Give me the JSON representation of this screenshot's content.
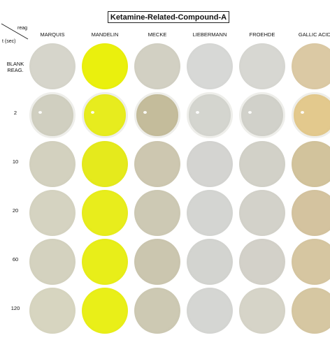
{
  "title": "Ketamine-Related-Compound-A",
  "corner": {
    "top": "reag",
    "bottom": "t (sec)"
  },
  "reagents": [
    "MARQUIS",
    "MANDELIN",
    "MECKE",
    "LIEBERMANN",
    "FROEHDE",
    "GALLIC ACID"
  ],
  "rows": [
    {
      "label": [
        "BLANK",
        "REAG."
      ],
      "colors": [
        "#d6d5cb",
        "#eaf00d",
        "#d2d0c3",
        "#d7d8d6",
        "#d7d7d2",
        "#dbc9a4"
      ]
    },
    {
      "label": [
        "2"
      ],
      "colors": [
        "#d0cfc0",
        "#e7ec1e",
        "#c4bc9b",
        "#d4d5cf",
        "#d1d1ca",
        "#e3c98d"
      ]
    },
    {
      "label": [
        "10"
      ],
      "colors": [
        "#d3d1bf",
        "#e5ea1c",
        "#cdc7b0",
        "#d4d4d1",
        "#d2d1c8",
        "#d2c39c"
      ]
    },
    {
      "label": [
        "20"
      ],
      "colors": [
        "#d5d3c1",
        "#e8ed1c",
        "#cdc9b4",
        "#d4d5d2",
        "#d3d2ca",
        "#d4c39f"
      ]
    },
    {
      "label": [
        "60"
      ],
      "colors": [
        "#d4d2bf",
        "#e8ee19",
        "#cbc6af",
        "#d3d4d0",
        "#d3d1c9",
        "#d6c6a1"
      ]
    },
    {
      "label": [
        "120"
      ],
      "colors": [
        "#d7d5c0",
        "#e9ef18",
        "#cdc9b3",
        "#d5d6d3",
        "#d6d4c8",
        "#d6c7a2"
      ]
    }
  ]
}
